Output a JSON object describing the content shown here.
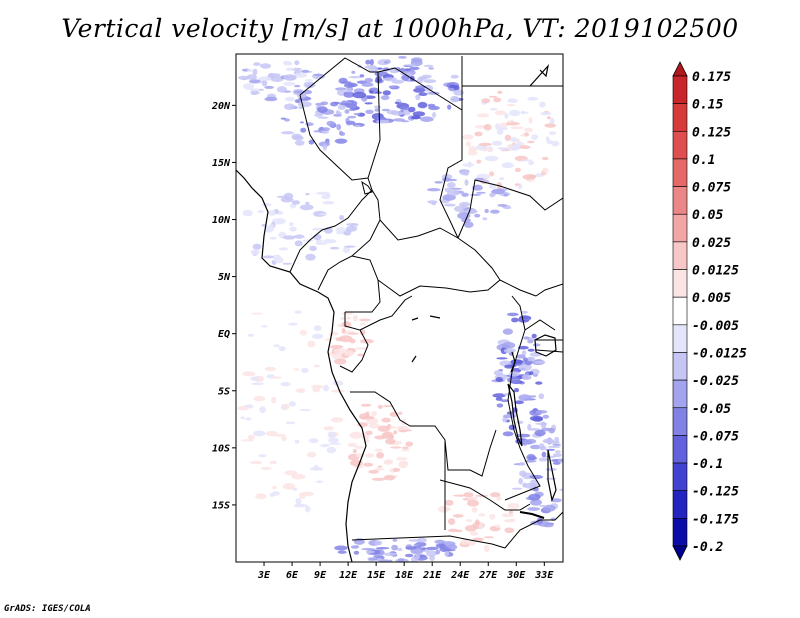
{
  "chart_data": {
    "type": "heatmap",
    "title": "Vertical velocity [m/s] at 1000hPa, VT: 2019102500",
    "x_ticks": [
      "3E",
      "6E",
      "9E",
      "12E",
      "15E",
      "18E",
      "21E",
      "24E",
      "27E",
      "30E",
      "33E"
    ],
    "y_ticks": [
      "20N",
      "15N",
      "10N",
      "5N",
      "EQ",
      "5S",
      "10S",
      "15S"
    ],
    "x_values": [
      3,
      6,
      9,
      12,
      15,
      18,
      21,
      24,
      27,
      30,
      33
    ],
    "y_values": [
      20,
      15,
      10,
      5,
      0,
      -5,
      -10,
      -15
    ],
    "xlim": [
      0,
      35
    ],
    "ylim": [
      -20,
      24.5
    ],
    "colorbar": {
      "levels": [
        "0.175",
        "0.15",
        "0.125",
        "0.1",
        "0.075",
        "0.05",
        "0.025",
        "0.0125",
        "0.005",
        "-0.005",
        "-0.0125",
        "-0.025",
        "-0.05",
        "-0.075",
        "-0.1",
        "-0.125",
        "-0.175",
        "-0.2"
      ],
      "colors": [
        "#b2181b",
        "#c8262a",
        "#d73a3a",
        "#e04f4f",
        "#e66969",
        "#ec8787",
        "#f2a5a5",
        "#f7c6c6",
        "#fbe4e4",
        "#ffffff",
        "#e4e4fb",
        "#c6c6f5",
        "#a3a3ee",
        "#8282e6",
        "#6262dc",
        "#4242d0",
        "#2424c0",
        "#0c0ca8",
        "#00008c"
      ]
    },
    "grid": false,
    "legend": "right"
  },
  "footer": {
    "credit": "GrADS: IGES/COLA"
  }
}
